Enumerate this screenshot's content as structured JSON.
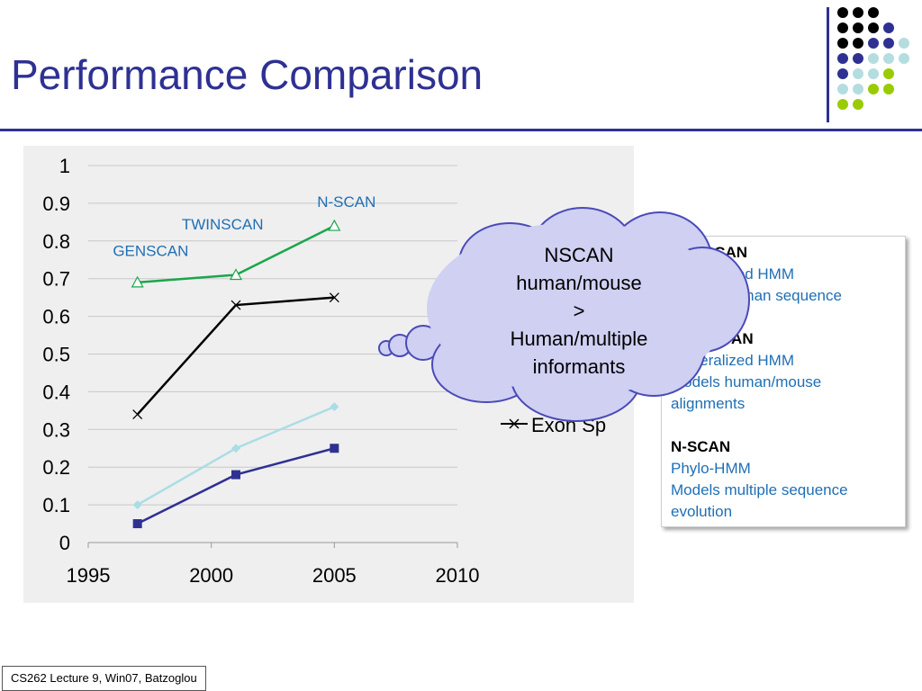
{
  "slide": {
    "title": "Performance Comparison",
    "footer": "CS262 Lecture 9, Win07, Batzoglou",
    "callout_lines": [
      "NSCAN",
      "human/mouse",
      ">",
      "Human/multiple",
      "informants"
    ],
    "info_box": {
      "blocks": [
        {
          "heading": "GENSCAN",
          "lines": [
            "Generalized HMM",
            "Models human sequence"
          ]
        },
        {
          "heading": "TWINSCAN",
          "lines": [
            "Generalized HMM",
            "Models human/mouse",
            "alignments"
          ]
        },
        {
          "heading": "N-SCAN",
          "lines": [
            "Phylo-HMM",
            "Models multiple sequence",
            "evolution"
          ]
        }
      ]
    },
    "colors": {
      "title": "#2e3192",
      "accent_green": "#99cc00",
      "accent_lightblue": "#b4dde0",
      "callout_fill": "#cfd0f2"
    }
  },
  "chart_data": {
    "type": "line",
    "xlim": [
      1995,
      2010
    ],
    "ylim": [
      0,
      1
    ],
    "x_ticks": [
      "1995",
      "2000",
      "2005",
      "2010"
    ],
    "y_ticks": [
      "0",
      "0.1",
      "0.2",
      "0.3",
      "0.4",
      "0.5",
      "0.6",
      "0.7",
      "0.8",
      "0.9",
      "1"
    ],
    "grid": true,
    "series": [
      {
        "x": [
          1997,
          2001,
          2005
        ],
        "values": [
          0.69,
          0.71,
          0.84
        ],
        "color": "#1aa64a",
        "marker": "triangle"
      },
      {
        "name": "Exon Sp",
        "x": [
          1997,
          2001,
          2005
        ],
        "values": [
          0.34,
          0.63,
          0.65
        ],
        "color": "#000000",
        "marker": "x"
      },
      {
        "x": [
          1997,
          2001,
          2005
        ],
        "values": [
          0.1,
          0.25,
          0.36
        ],
        "color": "#aadde6",
        "marker": "diamond"
      },
      {
        "x": [
          1997,
          2001,
          2005
        ],
        "values": [
          0.05,
          0.18,
          0.25
        ],
        "color": "#2e3192",
        "marker": "square"
      }
    ],
    "annotations": [
      {
        "text": "GENSCAN",
        "x": 1996,
        "y": 0.76
      },
      {
        "text": "TWINSCAN",
        "x": 1998.8,
        "y": 0.83
      },
      {
        "text": "N-SCAN",
        "x": 2004.3,
        "y": 0.89
      }
    ],
    "annotation_color": "#1f6fb5",
    "legend_visible": [
      "Exon Sp"
    ]
  }
}
